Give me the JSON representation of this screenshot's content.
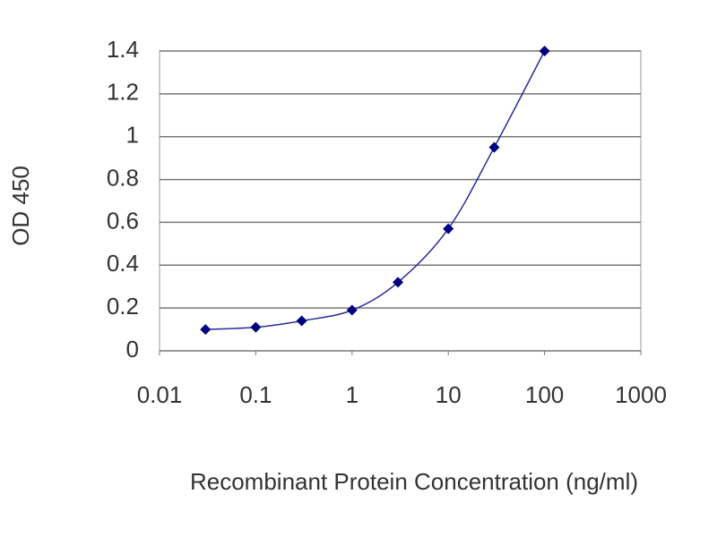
{
  "chart_data": {
    "type": "line",
    "x_label": "Recombinant Protein Concentration (ng/ml)",
    "y_label": "OD 450",
    "x": [
      0.03,
      0.1,
      0.3,
      1,
      3,
      10,
      30,
      100
    ],
    "series": [
      {
        "color": "#2b2b99",
        "marker_color": "#000080",
        "values": [
          0.1,
          0.11,
          0.14,
          0.19,
          0.32,
          0.57,
          0.95,
          1.4
        ]
      }
    ],
    "xscale": "log",
    "xlim": [
      0.01,
      1000
    ],
    "xticks": [
      0.01,
      0.1,
      1,
      10,
      100,
      1000
    ],
    "ylim": [
      0,
      1.4
    ],
    "yticks": [
      0,
      0.2,
      0.4,
      0.6,
      0.8,
      1,
      1.2,
      1.4
    ],
    "grid": true
  }
}
